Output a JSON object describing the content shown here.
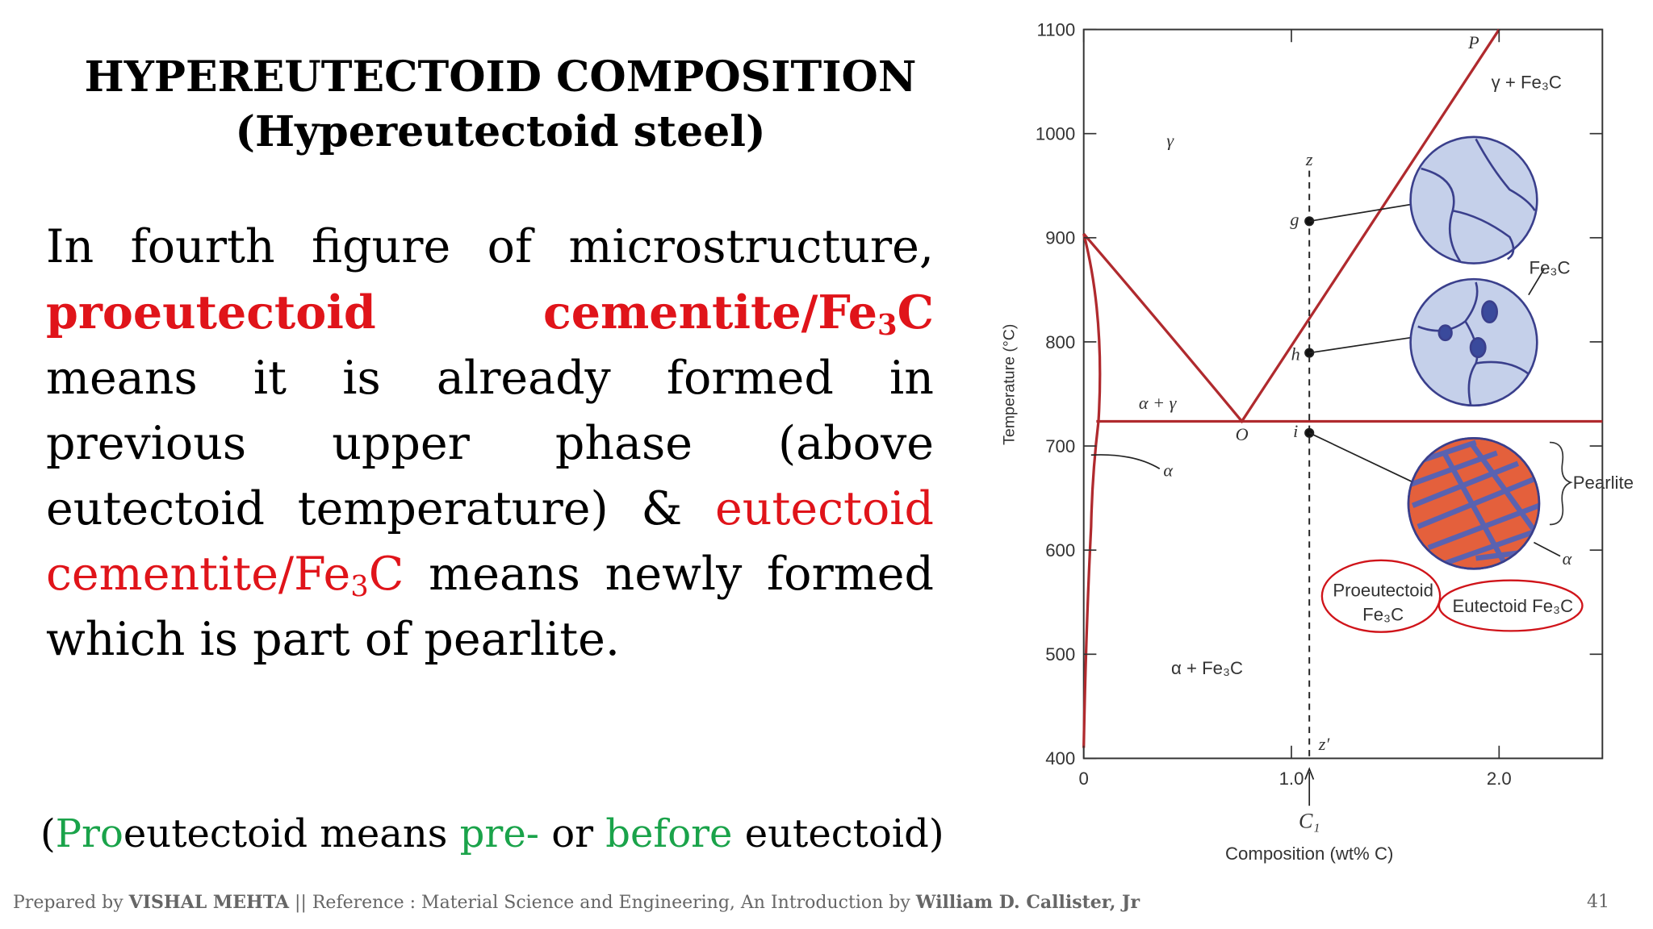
{
  "title": {
    "line1": "HYPEREUTECTOID COMPOSITION",
    "line2": "(Hypereutectoid steel)"
  },
  "body": [
    "In fourth figure of microstructure, ",
    "proeutectoid cementite/Fe",
    "3",
    "C",
    " means it is already formed in previous upper phase (above eutectoid temperature) & ",
    "eutectoid cementite/Fe",
    "3",
    "C",
    " means newly formed which is part of pearlite."
  ],
  "note": [
    "(",
    "Pro",
    "eutectoid means ",
    "pre-",
    " or ",
    "before",
    " eutectoid)"
  ],
  "footer": {
    "parts": [
      "Prepared by ",
      "VISHAL MEHTA",
      " || Reference : Material Science and Engineering, An Introduction by ",
      "William D. Callister, Jr"
    ],
    "page_number": 41
  },
  "figure": {
    "y_axis_label": "Temperature (°C)",
    "x_axis_label": "Composition (wt% C)",
    "yticks": [
      400,
      500,
      600,
      700,
      800,
      900,
      1000,
      1100
    ],
    "xticks": [
      0,
      {
        "value": 1,
        "label": "1.0"
      },
      {
        "value": 2,
        "label": "2.0"
      }
    ],
    "regions": {
      "gamma": "γ",
      "alpha_gamma": "α + γ",
      "alpha": "α",
      "alpha_fe3c": "α + Fe₃C",
      "gamma_fe3c": "γ + Fe₃C"
    },
    "points": {
      "P": "P",
      "O": "O",
      "g": "g",
      "h": "h",
      "i": "i",
      "z": "z",
      "z_prime": "z′"
    },
    "composition_marker": "C₁",
    "callouts": {
      "fe3c": "Fe₃C",
      "pearlite": "Pearlite",
      "alpha": "α",
      "proeutectoid": [
        "Proeutectoid",
        "Fe₃C"
      ],
      "eutectoid": "Eutectoid Fe₃C"
    }
  }
}
